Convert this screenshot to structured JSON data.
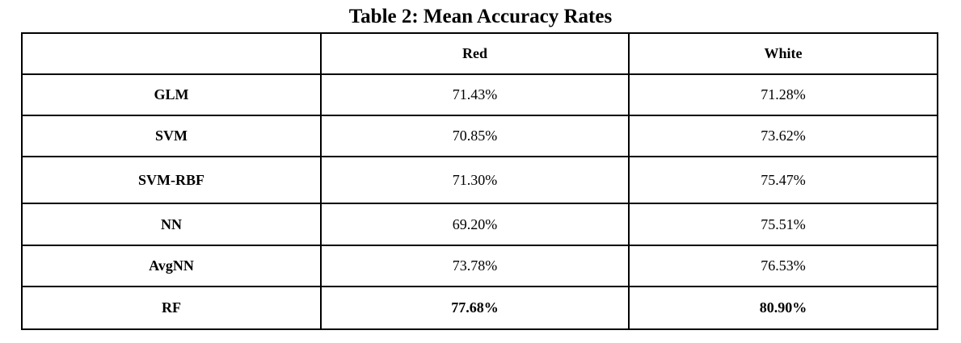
{
  "title": "Table 2: Mean Accuracy Rates",
  "table": {
    "columns": [
      "",
      "Red",
      "White"
    ],
    "rows": [
      {
        "label": "GLM",
        "red": "71.43%",
        "white": "71.28%"
      },
      {
        "label": "SVM",
        "red": "70.85%",
        "white": "73.62%"
      },
      {
        "label": "SVM-RBF",
        "red": "71.30%",
        "white": "75.47%"
      },
      {
        "label": "NN",
        "red": "69.20%",
        "white": "75.51%"
      },
      {
        "label": "AvgNN",
        "red": "73.78%",
        "white": "76.53%"
      },
      {
        "label": "RF",
        "red": "77.68%",
        "white": "80.90%",
        "bold": true
      }
    ]
  }
}
